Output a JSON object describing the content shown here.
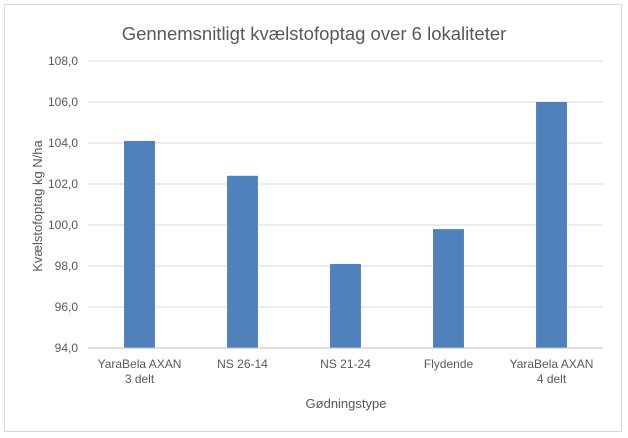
{
  "chart_data": {
    "type": "bar",
    "title": "Gennemsnitligt kvælstofoptag over 6 lokaliteter",
    "xlabel": "Gødningstype",
    "ylabel": "Kvælstofoptag kg N/ha",
    "categories": [
      [
        "YaraBela AXAN",
        "3 delt"
      ],
      [
        "NS 26-14"
      ],
      [
        "NS 21-24"
      ],
      [
        "Flydende"
      ],
      [
        "YaraBela AXAN",
        "4 delt"
      ]
    ],
    "values": [
      104.1,
      102.4,
      98.1,
      99.8,
      106.0
    ],
    "ylim": [
      94.0,
      108.0
    ],
    "yticks": [
      "94,0",
      "96,0",
      "98,0",
      "100,0",
      "102,0",
      "104,0",
      "106,0",
      "108,0"
    ],
    "bar_color": "#4f81bd",
    "grid": true,
    "legend": "none"
  }
}
